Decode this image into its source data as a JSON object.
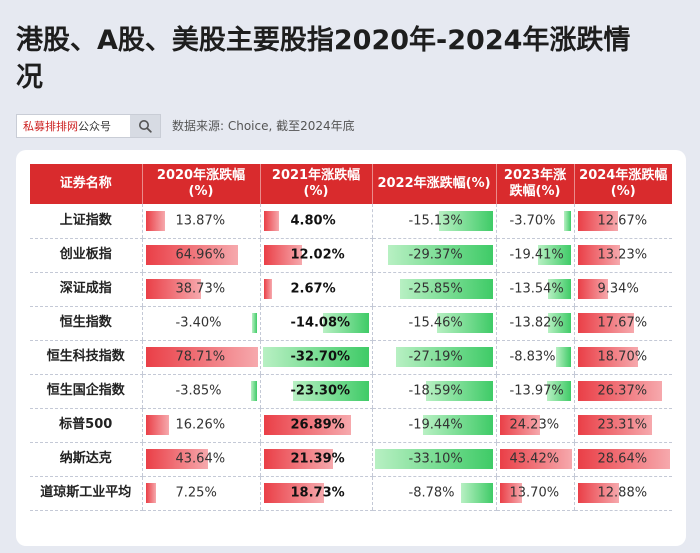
{
  "title": "港股、A股、美股主要股指2020年-2024年涨跌情况",
  "search": {
    "brand": "私募排排网",
    "suffix": "公众号"
  },
  "source": "数据来源: Choice, 截至2024年底",
  "colors": {
    "header": "#d92b2d",
    "positive": "#ea3f47",
    "negative": "#3fcb67"
  },
  "table": {
    "headers": [
      "证券名称",
      "2020年涨跌幅(%)",
      "2021年涨跌幅(%)",
      "2022年涨跌幅(%)",
      "2023年涨跌幅(%)",
      "2024年涨跌幅(%)"
    ]
  },
  "chart_data": {
    "type": "table",
    "years": [
      "2020",
      "2021",
      "2022",
      "2023",
      "2024"
    ],
    "rows": [
      {
        "name": "上证指数",
        "values": [
          13.87,
          4.8,
          -15.13,
          -3.7,
          12.67
        ]
      },
      {
        "name": "创业板指",
        "values": [
          64.96,
          12.02,
          -29.37,
          -19.41,
          13.23
        ]
      },
      {
        "name": "深证成指",
        "values": [
          38.73,
          2.67,
          -25.85,
          -13.54,
          9.34
        ]
      },
      {
        "name": "恒生指数",
        "values": [
          -3.4,
          -14.08,
          -15.46,
          -13.82,
          17.67
        ]
      },
      {
        "name": "恒生科技指数",
        "values": [
          78.71,
          -32.7,
          -27.19,
          -8.83,
          18.7
        ]
      },
      {
        "name": "恒生国企指数",
        "values": [
          -3.85,
          -23.3,
          -18.59,
          -13.97,
          26.37
        ]
      },
      {
        "name": "标普500",
        "values": [
          16.26,
          26.89,
          -19.44,
          24.23,
          23.31
        ]
      },
      {
        "name": "纳斯达克",
        "values": [
          43.64,
          21.39,
          -33.1,
          43.42,
          28.64
        ]
      },
      {
        "name": "道琼斯工业平均",
        "values": [
          7.25,
          18.73,
          -8.78,
          13.7,
          12.88
        ]
      }
    ]
  }
}
